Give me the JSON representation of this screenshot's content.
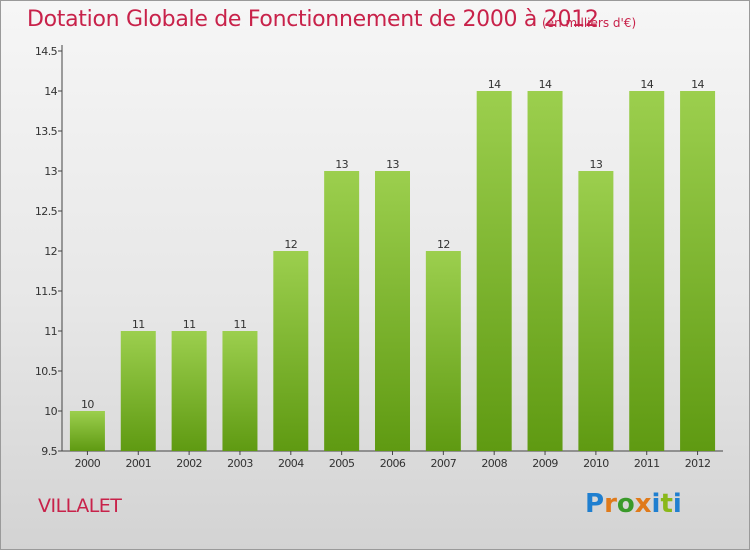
{
  "header": {
    "title": "Dotation Globale de Fonctionnement de 2000 à 2012",
    "subtitle": "(en milliers d'€)"
  },
  "footer": {
    "place": "VILLALET",
    "logo": "Proxiti"
  },
  "colors": {
    "title": "#c8224a",
    "bar_light": "#9ccf4e",
    "bar_dark": "#5f9a12",
    "logo_letters": [
      "#1f7fd0",
      "#e07a1a",
      "#3a9a2a",
      "#e07a1a",
      "#1f7fd0",
      "#8ab81a",
      "#1f7fd0"
    ]
  },
  "chart_data": {
    "type": "bar",
    "categories": [
      "2000",
      "2001",
      "2002",
      "2003",
      "2004",
      "2005",
      "2006",
      "2007",
      "2008",
      "2009",
      "2010",
      "2011",
      "2012"
    ],
    "values": [
      10,
      11,
      11,
      11,
      12,
      13,
      13,
      12,
      14,
      14,
      13,
      14,
      14
    ],
    "data_labels": [
      "10",
      "11",
      "11",
      "11",
      "12",
      "13",
      "13",
      "12",
      "14",
      "14",
      "13",
      "14",
      "14"
    ],
    "title": "Dotation Globale de Fonctionnement de 2000 à 2012",
    "subtitle": "(en milliers d'€)",
    "ylim": [
      9.5,
      14.5
    ],
    "yticks": [
      9.5,
      10,
      10.5,
      11,
      11.5,
      12,
      12.5,
      13,
      13.5,
      14,
      14.5
    ],
    "ytick_labels": [
      "9.5",
      "10",
      "10.5",
      "11",
      "11.5",
      "12",
      "12.5",
      "13",
      "13.5",
      "14",
      "14.5"
    ],
    "grid": false,
    "legend": "none"
  }
}
